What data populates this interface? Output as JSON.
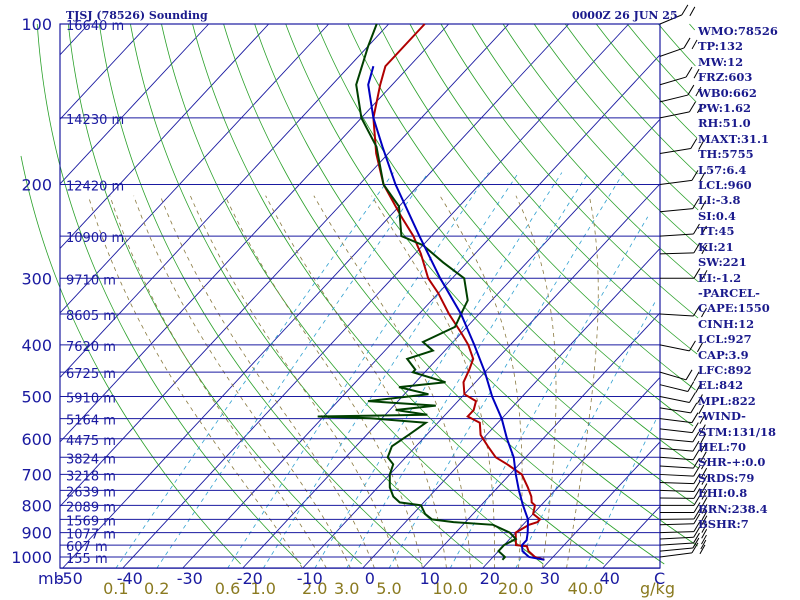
{
  "header": {
    "title": "TJSJ (78526) Sounding",
    "date": "0000Z 26 JUN 25"
  },
  "stats": [
    "WMO:78526",
    "TP:132",
    "MW:12",
    "FRZ:603",
    "WB0:662",
    "PW:1.62",
    "RH:51.0",
    "MAXT:31.1",
    "TH:5755",
    "L57:6.4",
    "LCL:960",
    "LI:-3.8",
    "SI:0.4",
    "TT:45",
    "KI:21",
    "SW:221",
    "EI:-1.2",
    "-PARCEL-",
    "CAPE:1550",
    "CINH:12",
    "LCL:927",
    "CAP:3.9",
    "LFC:892",
    "EL:842",
    "MPL:822",
    "-WIND-",
    "STM:131/18",
    "HEL:70",
    "SHR-+:0.0",
    "SRDS:79",
    "EHI:0.8",
    "BRN:238.4",
    "BSHR:7"
  ],
  "chart_data": {
    "type": "line",
    "title": "TJSJ (78526) Sounding",
    "xlabel": "",
    "ylabel": "mb",
    "x_unit_label": "C",
    "xlim": [
      -50,
      50
    ],
    "ylim": [
      1050,
      100
    ],
    "y_scale": "log",
    "skew": true,
    "pressure_ticks": [
      100,
      200,
      300,
      400,
      500,
      600,
      700,
      800,
      900,
      1000
    ],
    "temperature_ticks": [
      -50,
      -40,
      -30,
      -20,
      -10,
      0,
      10,
      20,
      30,
      40
    ],
    "mixing_ratio_label": "g/kg",
    "mixing_ratio_labels": [
      "0.1",
      "0.2",
      "0.6",
      "1.0",
      "2.0",
      "3.0",
      "5.0",
      "10.0",
      "20.0",
      "40.0"
    ],
    "mixing_ratio_values": [
      0.1,
      0.2,
      0.6,
      1.0,
      2.0,
      3.0,
      5.0,
      10.0,
      20.0,
      40.0
    ],
    "height_labels": [
      {
        "p": 100,
        "label": "16640 m"
      },
      {
        "p": 150,
        "label": "14230 m"
      },
      {
        "p": 200,
        "label": "12420 m"
      },
      {
        "p": 250,
        "label": "10900 m"
      },
      {
        "p": 300,
        "label": "9710 m"
      },
      {
        "p": 350,
        "label": "8605 m"
      },
      {
        "p": 400,
        "label": "7620 m"
      },
      {
        "p": 450,
        "label": "6725 m"
      },
      {
        "p": 500,
        "label": "5910 m"
      },
      {
        "p": 550,
        "label": "5164 m"
      },
      {
        "p": 600,
        "label": "4475 m"
      },
      {
        "p": 650,
        "label": "3824 m"
      },
      {
        "p": 700,
        "label": "3218 m"
      },
      {
        "p": 750,
        "label": "2639 m"
      },
      {
        "p": 800,
        "label": "2089 m"
      },
      {
        "p": 850,
        "label": "1569 m"
      },
      {
        "p": 900,
        "label": "1077 m"
      },
      {
        "p": 950,
        "label": "607 m"
      },
      {
        "p": 1000,
        "label": "155 m"
      }
    ],
    "series": [
      {
        "color": "#b00000",
        "p": [
          1012,
          1000,
          975,
          955,
          950,
          925,
          900,
          870,
          860,
          850,
          830,
          800,
          790,
          770,
          740,
          700,
          670,
          650,
          620,
          590,
          560,
          545,
          530,
          510,
          495,
          470,
          445,
          425,
          400,
          380,
          350,
          320,
          300,
          270,
          250,
          230,
          200,
          175,
          150,
          130,
          120,
          100
        ],
        "t": [
          29,
          27,
          25,
          24,
          22,
          21,
          20,
          21,
          22,
          22,
          20,
          19,
          18,
          17,
          15,
          12,
          8,
          5,
          2,
          -1,
          -3,
          -6,
          -6,
          -7,
          -10,
          -12,
          -13,
          -14,
          -17,
          -20,
          -25,
          -30,
          -34,
          -39,
          -43,
          -48,
          -56,
          -62,
          -68,
          -72,
          -74,
          -74
        ]
      },
      {
        "color": "#004000",
        "p": [
          1012,
          1000,
          975,
          955,
          950,
          925,
          900,
          870,
          860,
          850,
          830,
          800,
          790,
          770,
          740,
          700,
          670,
          650,
          620,
          590,
          560,
          549,
          545,
          541,
          530,
          520,
          510,
          495,
          480,
          470,
          450,
          445,
          425,
          410,
          395,
          370,
          350,
          330,
          300,
          280,
          260,
          250,
          220,
          200,
          170,
          150,
          130,
          110,
          100
        ],
        "t": [
          22,
          22,
          20,
          20,
          20,
          21,
          19,
          15,
          8,
          4,
          2,
          0,
          -4,
          -6,
          -8,
          -10,
          -11,
          -13,
          -14,
          -13,
          -12,
          -22,
          -31,
          -13,
          -19,
          -13,
          -25,
          -16,
          -22,
          -15,
          -22,
          -22,
          -25,
          -22,
          -25,
          -22,
          -23,
          -24,
          -28,
          -34,
          -40,
          -45,
          -50,
          -56,
          -63,
          -70,
          -76,
          -80,
          -82
        ]
      },
      {
        "color": "#0000c0",
        "p": [
          1012,
          1000,
          975,
          950,
          930,
          900,
          850,
          800,
          750,
          700,
          650,
          600,
          550,
          500,
          450,
          400,
          350,
          300,
          250,
          200,
          170,
          150,
          130,
          120
        ],
        "t": [
          29,
          26,
          24,
          23,
          23,
          22,
          20,
          17,
          14,
          11,
          8,
          4,
          0,
          -5,
          -10,
          -16,
          -23,
          -32,
          -42,
          -54,
          -62,
          -68,
          -74,
          -76
        ]
      }
    ]
  }
}
